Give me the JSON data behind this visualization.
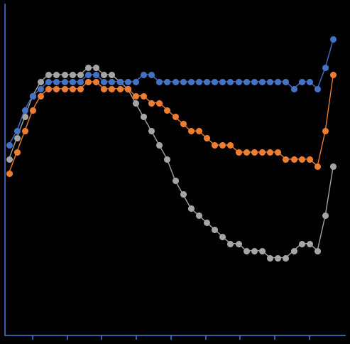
{
  "background_color": "#000000",
  "spine_color": "#4472c4",
  "tick_color": "#4472c4",
  "n_points": 42,
  "blue_series": [
    0.72,
    0.74,
    0.77,
    0.79,
    0.8,
    0.81,
    0.81,
    0.81,
    0.81,
    0.81,
    0.82,
    0.82,
    0.81,
    0.81,
    0.81,
    0.81,
    0.81,
    0.82,
    0.82,
    0.81,
    0.81,
    0.81,
    0.81,
    0.81,
    0.81,
    0.81,
    0.81,
    0.81,
    0.81,
    0.81,
    0.81,
    0.81,
    0.81,
    0.81,
    0.81,
    0.81,
    0.8,
    0.81,
    0.81,
    0.8,
    0.83,
    0.87
  ],
  "orange_series": [
    0.68,
    0.71,
    0.74,
    0.77,
    0.79,
    0.8,
    0.8,
    0.8,
    0.8,
    0.8,
    0.81,
    0.81,
    0.8,
    0.8,
    0.8,
    0.8,
    0.79,
    0.79,
    0.78,
    0.78,
    0.77,
    0.76,
    0.75,
    0.74,
    0.74,
    0.73,
    0.72,
    0.72,
    0.72,
    0.71,
    0.71,
    0.71,
    0.71,
    0.71,
    0.71,
    0.7,
    0.7,
    0.7,
    0.7,
    0.69,
    0.74,
    0.82
  ],
  "gray_series": [
    0.7,
    0.73,
    0.76,
    0.79,
    0.81,
    0.82,
    0.82,
    0.82,
    0.82,
    0.82,
    0.83,
    0.83,
    0.82,
    0.82,
    0.81,
    0.8,
    0.78,
    0.76,
    0.74,
    0.72,
    0.7,
    0.67,
    0.65,
    0.63,
    0.62,
    0.61,
    0.6,
    0.59,
    0.58,
    0.58,
    0.57,
    0.57,
    0.57,
    0.56,
    0.56,
    0.56,
    0.57,
    0.58,
    0.58,
    0.57,
    0.62,
    0.69
  ],
  "blue_color": "#4472c4",
  "orange_color": "#ed7d31",
  "gray_color": "#a5a5a5",
  "marker_size": 6.5,
  "line_width": 1.0,
  "n_xticks": 9,
  "ylim": [
    0.45,
    0.92
  ],
  "xlim": [
    -0.5,
    42.5
  ]
}
